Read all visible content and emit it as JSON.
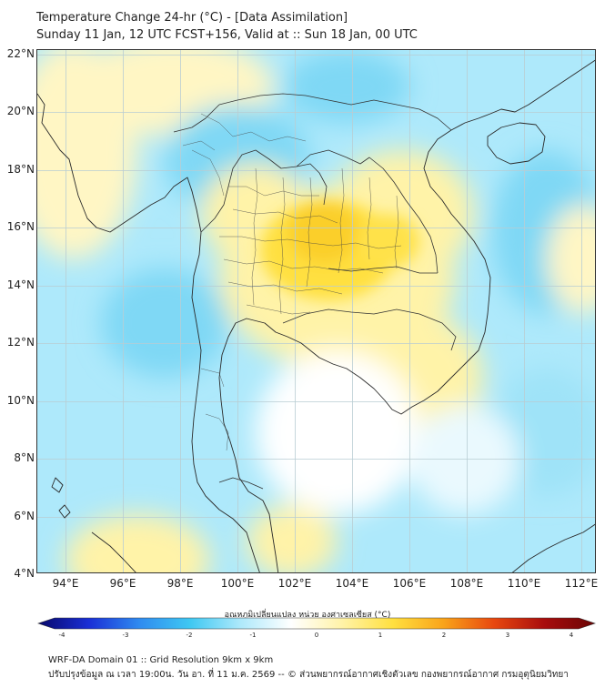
{
  "header": {
    "title_line1": "Temperature Change 24-hr (°C) - [Data Assimilation]",
    "title_line2": "Sunday 11 Jan, 12 UTC FCST+156, Valid at :: Sun 18 Jan, 00 UTC"
  },
  "map": {
    "lat_range": [
      4,
      22
    ],
    "lon_range": [
      93,
      112.5
    ],
    "lat_labels": [
      "22°N",
      "20°N",
      "18°N",
      "16°N",
      "14°N",
      "12°N",
      "10°N",
      "8°N",
      "6°N",
      "4°N"
    ],
    "lon_labels": [
      "94°E",
      "96°E",
      "98°E",
      "100°E",
      "102°E",
      "104°E",
      "106°E",
      "108°E",
      "110°E",
      "112°E"
    ]
  },
  "colorbar": {
    "label": "อุณหภูมิเปลี่ยนแปลง หน่วย องศาเซลเซียส (°C)",
    "range": [
      -4,
      4
    ],
    "ticks": [
      "-4",
      "-3",
      "-2",
      "-1",
      "0",
      "1",
      "2",
      "3",
      "4"
    ],
    "colors": [
      "#08086b",
      "#1a2fd6",
      "#2f8bf0",
      "#3fc8f2",
      "#aee9fb",
      "#ffffff",
      "#fff3a8",
      "#ffe040",
      "#f9a41a",
      "#e8480f",
      "#a80d0d",
      "#6a0505"
    ]
  },
  "footer": {
    "line1": "WRF-DA Domain 01 :: Grid Resolution 9km x 9km",
    "line2": "ปรับปรุงข้อมูล ณ เวลา 19:00น. วัน อา. ที่ 11 ม.ค. 2569 -- © ส่วนพยากรณ์อากาศเชิงตัวเลข กองพยากรณ์อากาศ กรมอุตุนิยมวิทยา"
  }
}
